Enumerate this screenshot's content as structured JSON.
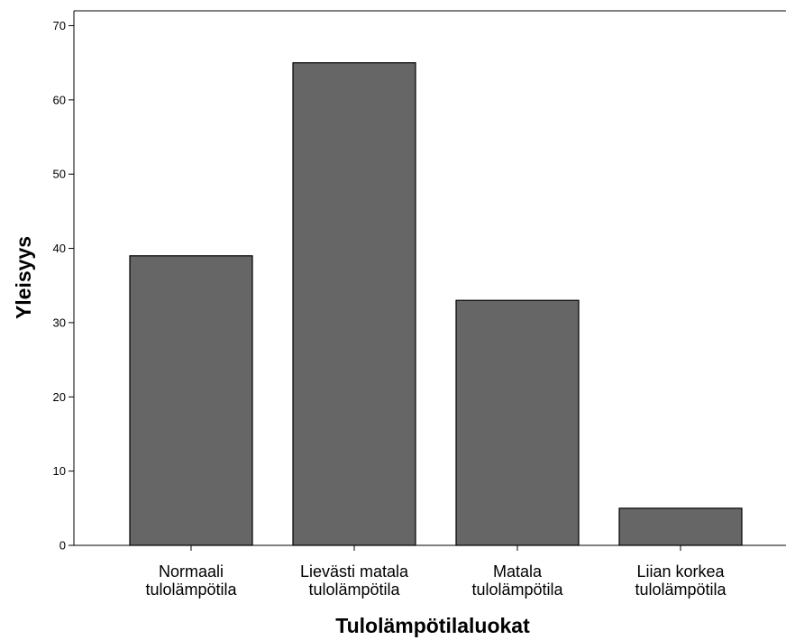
{
  "chart_data": {
    "type": "bar",
    "categories": [
      [
        "Normaali",
        "tulolämpötila"
      ],
      [
        "Lievästi matala",
        "tulolämpötila"
      ],
      [
        "Matala",
        "tulolämpötila"
      ],
      [
        "Liian korkea",
        "tulolämpötila"
      ]
    ],
    "values": [
      39,
      65,
      33,
      5
    ],
    "xlabel": "Tulolämpötilaluokat",
    "ylabel": "Yleisyys",
    "ylim": [
      0,
      72
    ],
    "yticks": [
      0,
      10,
      20,
      30,
      40,
      50,
      60,
      70
    ],
    "grid": false,
    "legend": "none"
  },
  "colors": {
    "bar_fill": "#666666",
    "bar_stroke": "#000000",
    "axis": "#000000",
    "background": "#ffffff"
  }
}
